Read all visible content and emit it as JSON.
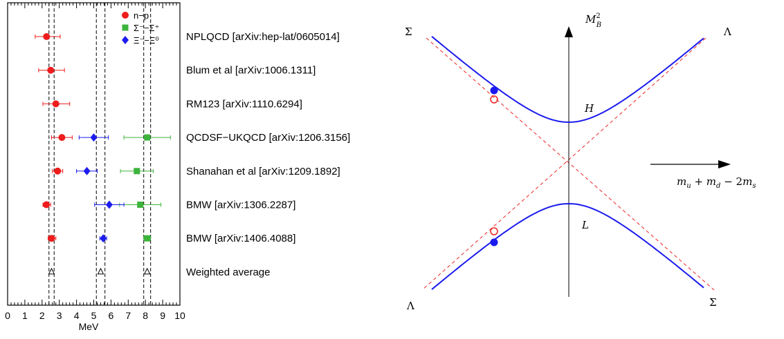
{
  "chart_data": [
    {
      "type": "scatter",
      "xlabel": "MeV",
      "xlim": [
        0,
        10
      ],
      "x_ticks": [
        "0",
        "1",
        "2",
        "3",
        "4",
        "5",
        "6",
        "7",
        "8",
        "9",
        "10"
      ],
      "categories": [
        "NPLQCD [arXiv:hep-lat/0605014]",
        "Blum et al [arXiv:1006.1311]",
        "RM123 [arXiv:1110.6294]",
        "QCDSF−UKQCD [arXiv:1206.3156]",
        "Shanahan et al [arXiv:1209.1892]",
        "BMW [arXiv:1306.2287]",
        "BMW [arXiv:1406.4088]",
        "Weighted average"
      ],
      "series": [
        {
          "name": "n−p",
          "color": "#ee1c1c",
          "marker": "circle",
          "points": [
            {
              "row": 0,
              "x": 2.26,
              "lo": 1.6,
              "hi": 3.05
            },
            {
              "row": 1,
              "x": 2.5,
              "lo": 1.8,
              "hi": 3.3
            },
            {
              "row": 2,
              "x": 2.8,
              "lo": 2.05,
              "hi": 3.6
            },
            {
              "row": 3,
              "x": 3.15,
              "lo": 2.55,
              "hi": 3.75
            },
            {
              "row": 4,
              "x": 2.9,
              "lo": 2.6,
              "hi": 3.2
            },
            {
              "row": 5,
              "x": 2.25,
              "lo": 2.05,
              "hi": 2.5
            },
            {
              "row": 6,
              "x": 2.55,
              "lo": 2.35,
              "hi": 2.8
            }
          ]
        },
        {
          "name": "Σ⁻−Σ⁺",
          "color": "#3cb43c",
          "marker": "square",
          "points": [
            {
              "row": 3,
              "x": 8.1,
              "lo": 6.75,
              "hi": 9.45
            },
            {
              "row": 4,
              "x": 7.5,
              "lo": 6.55,
              "hi": 8.45
            },
            {
              "row": 5,
              "x": 7.7,
              "lo": 6.5,
              "hi": 8.9
            },
            {
              "row": 6,
              "x": 8.1,
              "lo": 7.9,
              "hi": 8.3
            }
          ]
        },
        {
          "name": "Ξ⁻−Ξ⁰",
          "color": "#1c1cee",
          "marker": "diamond",
          "points": [
            {
              "row": 3,
              "x": 5.0,
              "lo": 4.15,
              "hi": 5.85
            },
            {
              "row": 4,
              "x": 4.6,
              "lo": 4.0,
              "hi": 5.2
            },
            {
              "row": 5,
              "x": 5.9,
              "lo": 5.05,
              "hi": 6.75
            },
            {
              "row": 6,
              "x": 5.55,
              "lo": 5.35,
              "hi": 5.75
            }
          ]
        }
      ],
      "weighted_average": [
        {
          "x": 2.55,
          "band": [
            2.4,
            2.7
          ]
        },
        {
          "x": 5.4,
          "band": [
            5.15,
            5.65
          ]
        },
        {
          "x": 8.1,
          "band": [
            7.9,
            8.3
          ]
        }
      ]
    },
    {
      "type": "line",
      "ylabel": "M_B^2",
      "xlabel": "m_u + m_d − 2m_s",
      "corner_labels": {
        "top_left": "Σ",
        "top_right": "Λ",
        "bottom_left": "Λ",
        "bottom_right": "Σ"
      },
      "branch_labels": {
        "upper": "H",
        "lower": "L"
      },
      "series": [
        {
          "name": "upper-hyperbola",
          "color": "#1a1aee",
          "style": "solid"
        },
        {
          "name": "lower-hyperbola",
          "color": "#1a1aee",
          "style": "solid"
        },
        {
          "name": "asymptotes",
          "color": "#ee2222",
          "style": "dashed"
        }
      ]
    }
  ]
}
